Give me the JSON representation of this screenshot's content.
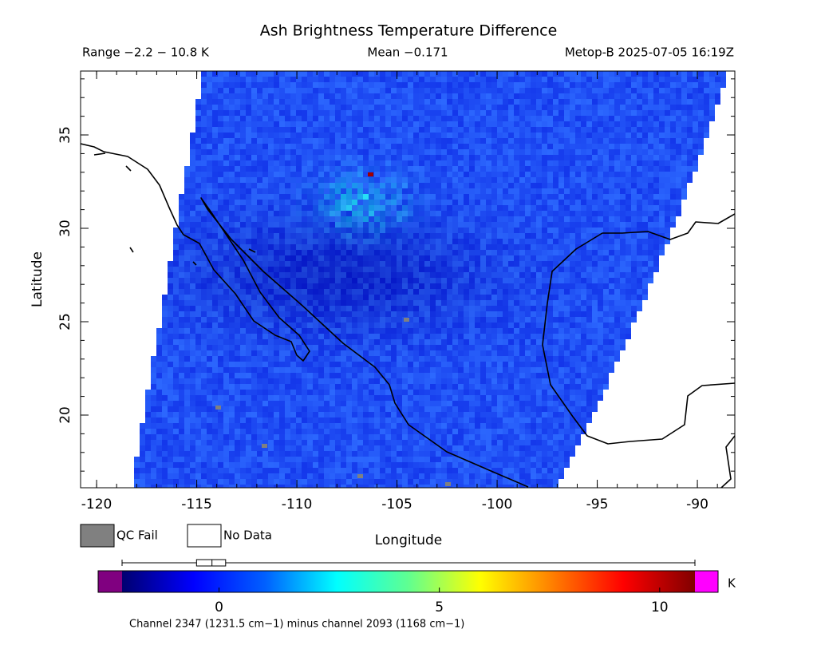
{
  "title": "Ash Brightness Temperature Difference",
  "range_text": "Range −2.2 − 10.8 K",
  "mean_text": "Mean −0.171",
  "source_text": "Metop-B 2025-07-05 16:19Z",
  "map": {
    "x_label": "Longitude",
    "y_label": "Latitude",
    "xlim": [
      -120.8,
      -88.13
    ],
    "ylim": [
      16.11,
      38.42
    ],
    "xticks": [
      -120,
      -115,
      -110,
      -105,
      -100,
      -95,
      -90
    ],
    "yticks": [
      20,
      25,
      30,
      35
    ]
  },
  "legend": [
    {
      "label": "QC Fail",
      "color": "#808080"
    },
    {
      "label": "No Data",
      "color": "#ffffff"
    }
  ],
  "colorbar": {
    "lim": [
      -2.2,
      10.8
    ],
    "ticks": [
      0,
      5,
      10
    ],
    "unit": "K",
    "caption": "Channel 2347 (1231.5 cm−1) minus channel 2093 (1168 cm−1)",
    "under_color": "#800080",
    "over_color": "#ff00ff",
    "colors": [
      "#000070",
      "#0000ff",
      "#0060ff",
      "#00ffff",
      "#60ff90",
      "#ffff00",
      "#ff8000",
      "#ff0000",
      "#800000"
    ],
    "boxplot": {
      "min": -2.2,
      "q1": -0.51,
      "median": -0.16,
      "q3": 0.15,
      "max": 10.8
    }
  }
}
